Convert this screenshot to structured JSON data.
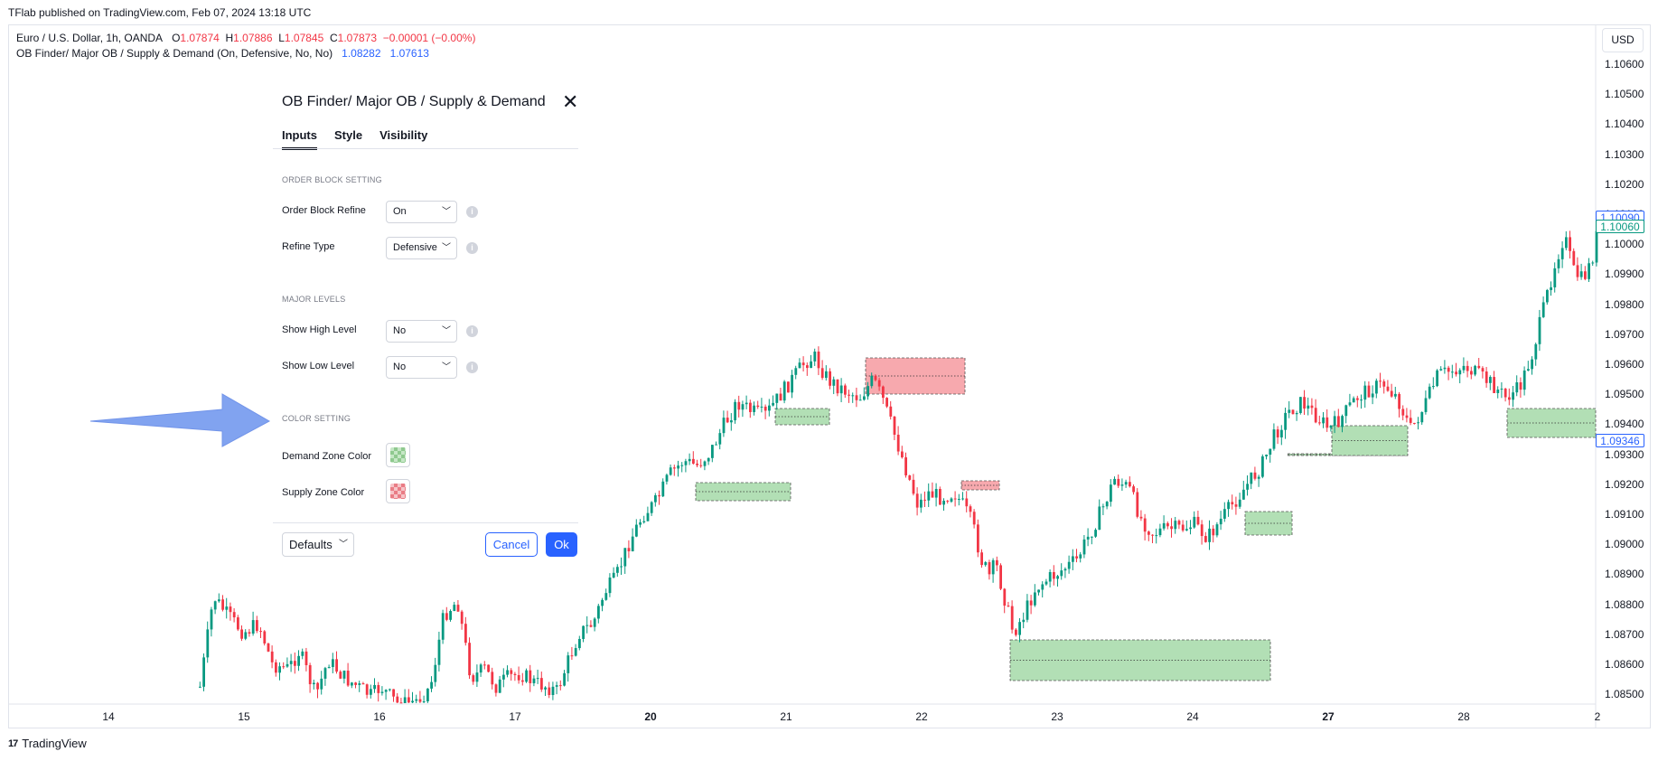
{
  "header": {
    "published": "TFlab published on TradingView.com, Feb 07, 2024 13:18 UTC"
  },
  "legend": {
    "symbol": "Euro / U.S. Dollar, 1h, OANDA",
    "o_label": "O",
    "o_value": "1.07874",
    "h_label": "H",
    "h_value": "1.07886",
    "l_label": "L",
    "l_value": "1.07845",
    "c_label": "C",
    "c_value": "1.07873",
    "change": "−0.00001 (−0.00%)",
    "indicator": "OB Finder/ Major OB / Supply & Demand (On, Defensive, No, No)",
    "ind_v1": "1.08282",
    "ind_v2": "1.07613"
  },
  "currency_button": "USD",
  "price_axis": [
    "1.10600",
    "1.10500",
    "1.10400",
    "1.10300",
    "1.10200",
    "1.10100",
    "1.10000",
    "1.09900",
    "1.09800",
    "1.09700",
    "1.09600",
    "1.09500",
    "1.09400",
    "1.09300",
    "1.09200",
    "1.09100",
    "1.09000",
    "1.08900",
    "1.08800",
    "1.08700",
    "1.08600",
    "1.08500"
  ],
  "price_tags": [
    {
      "value": "1.10090",
      "color": "#2962ff"
    },
    {
      "value": "1.10060",
      "color": "#089981"
    },
    {
      "value": "1.09346",
      "color": "#2962ff"
    }
  ],
  "time_axis": [
    {
      "label": "14",
      "bold": false
    },
    {
      "label": "15",
      "bold": false
    },
    {
      "label": "16",
      "bold": false
    },
    {
      "label": "17",
      "bold": false
    },
    {
      "label": "20",
      "bold": true
    },
    {
      "label": "21",
      "bold": false
    },
    {
      "label": "22",
      "bold": false
    },
    {
      "label": "23",
      "bold": false
    },
    {
      "label": "24",
      "bold": false
    },
    {
      "label": "27",
      "bold": true
    },
    {
      "label": "28",
      "bold": false
    },
    {
      "label": "2",
      "bold": false
    }
  ],
  "dialog": {
    "title": "OB Finder/ Major OB / Supply & Demand",
    "tabs": [
      "Inputs",
      "Style",
      "Visibility"
    ],
    "section_order_block": "ORDER BLOCK SETTING",
    "order_block_refine_label": "Order Block Refine",
    "order_block_refine_value": "On",
    "refine_type_label": "Refine Type",
    "refine_type_value": "Defensive",
    "section_major": "MAJOR LEVELS",
    "show_high_label": "Show High Level",
    "show_high_value": "No",
    "show_low_label": "Show Low Level",
    "show_low_value": "No",
    "section_color": "COLOR SETTING",
    "demand_label": "Demand Zone Color",
    "supply_label": "Supply Zone Color",
    "defaults_label": "Defaults",
    "cancel_label": "Cancel",
    "ok_label": "Ok"
  },
  "footer": {
    "brand": "TradingView",
    "logo": "17"
  },
  "colors": {
    "up": "#089981",
    "down": "#f23645",
    "demand": "#b2dfb5",
    "supply": "#f7a9ae",
    "accent": "#2962ff",
    "arrow": "#7b9ff0"
  }
}
